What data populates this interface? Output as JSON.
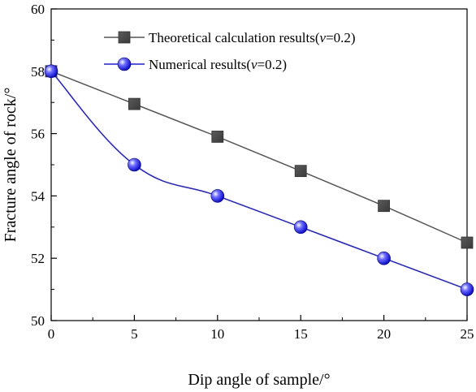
{
  "chart_data": {
    "type": "line",
    "title": "",
    "xlabel": "Dip angle of sample/°",
    "ylabel": "Fracture angle of rock/°",
    "xlim": [
      0,
      25
    ],
    "ylim": [
      50,
      60
    ],
    "xticks": [
      0,
      5,
      10,
      15,
      20,
      25
    ],
    "yticks": [
      50,
      52,
      54,
      56,
      58,
      60
    ],
    "grid": false,
    "legend_position": "top-right",
    "series": [
      {
        "name_prefix": "Theoretical calculation results(",
        "name_var": "ν",
        "name_suffix": "=0.2)",
        "marker": "square",
        "color": "#555555",
        "marker_color": "#484848",
        "smooth": false,
        "x": [
          0,
          5,
          10,
          15,
          20,
          25
        ],
        "y": [
          58.0,
          56.95,
          55.9,
          54.8,
          53.68,
          52.5
        ]
      },
      {
        "name_prefix": "Numerical results(",
        "name_var": "ν",
        "name_suffix": "=0.2)",
        "marker": "circle",
        "color": "#1a1aff",
        "marker_color": "#0000ee",
        "smooth": true,
        "x": [
          0,
          5,
          10,
          15,
          20,
          25
        ],
        "y": [
          58.0,
          55.0,
          54.0,
          53.0,
          52.0,
          51.0
        ]
      }
    ]
  }
}
